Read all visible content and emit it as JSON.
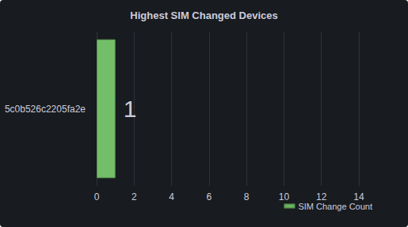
{
  "chart_data": {
    "type": "bar",
    "title": "Highest SIM Changed Devices",
    "orientation": "horizontal",
    "categories": [
      "5c0b526c2205fa2e"
    ],
    "series": [
      {
        "name": "SIM Change Count",
        "color": "#73bf69",
        "values": [
          1
        ]
      }
    ],
    "xlim": [
      0,
      14
    ],
    "xticks": [
      0,
      2,
      4,
      6,
      8,
      10,
      12,
      14
    ],
    "grid": true,
    "data_labels": true,
    "legend": "bottom-right"
  }
}
